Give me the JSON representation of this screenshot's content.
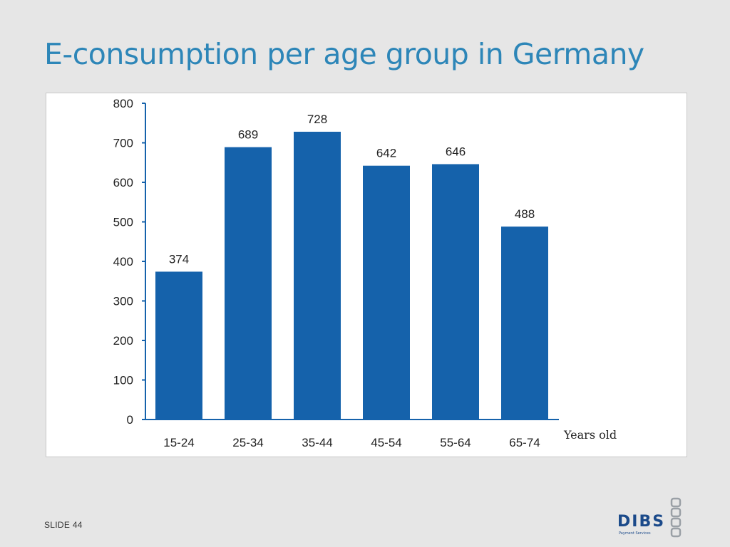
{
  "slide": {
    "title": "E-consumption per age group in Germany",
    "slide_number": "SLIDE 44",
    "logo_text": "DIBS",
    "logo_subtext": "Payment Services"
  },
  "colors": {
    "bar": "#1562ab",
    "title": "#2d86b8",
    "axis": "#1562ab",
    "background": "#e6e6e6"
  },
  "chart_data": {
    "type": "bar",
    "categories": [
      "15-24",
      "25-34",
      "35-44",
      "45-54",
      "55-64",
      "65-74"
    ],
    "values": [
      374,
      689,
      728,
      642,
      646,
      488
    ],
    "title": "",
    "xlabel": "Years old",
    "ylabel": "",
    "ylim": [
      0,
      800
    ],
    "yticks": [
      0,
      100,
      200,
      300,
      400,
      500,
      600,
      700,
      800
    ],
    "grid": false,
    "legend": "none",
    "data_labels": true
  }
}
